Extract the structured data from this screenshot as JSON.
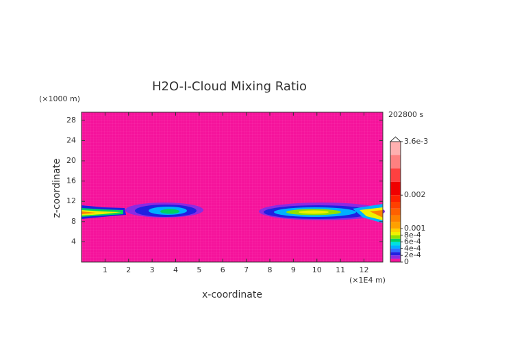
{
  "chart_data": {
    "type": "contour",
    "title": "H2O-I-Cloud Mixing Ratio",
    "x_label": "x-coordinate",
    "y_label": "z-coordinate",
    "x_unit": "(×1E4 m)",
    "y_unit": "(×1000 m)",
    "time_label": "202800 s",
    "xlim": [
      0,
      12.8
    ],
    "ylim": [
      0,
      29.6
    ],
    "xticks": [
      1,
      2,
      3,
      4,
      5,
      6,
      7,
      8,
      9,
      10,
      11,
      12
    ],
    "yticks": [
      4,
      8,
      12,
      16,
      20,
      24,
      28
    ],
    "background_color": "#f5139b",
    "colorbar": {
      "lim": [
        0,
        0.0036
      ],
      "ticks": [
        {
          "value": 0.0036,
          "label": "3.6e-3"
        },
        0.002,
        0.001,
        {
          "value": 0.0008,
          "label": "8e-4"
        },
        {
          "value": 0.0006,
          "label": "6e-4"
        },
        {
          "value": 0.0004,
          "label": "4e-4"
        },
        {
          "value": 0.0002,
          "label": "2e-4"
        },
        0
      ],
      "levels": [
        0,
        0.0001,
        0.0002,
        0.0003,
        0.0004,
        0.0005,
        0.0006,
        0.0007,
        0.0008,
        0.0009,
        0.001,
        0.0012,
        0.0014,
        0.0016,
        0.0018,
        0.002,
        0.0024,
        0.0028,
        0.0032,
        0.0036
      ],
      "colors": [
        "#f5139b",
        "#8a2be2",
        "#2020e0",
        "#2f6fff",
        "#00b0ff",
        "#00e0e0",
        "#00d060",
        "#90e000",
        "#f0f000",
        "#ffd000",
        "#ffa000",
        "#ff8000",
        "#ff6000",
        "#ff4000",
        "#ff2000",
        "#f00000",
        "#ff4040",
        "#ff8080",
        "#ffb0b0"
      ]
    }
  }
}
